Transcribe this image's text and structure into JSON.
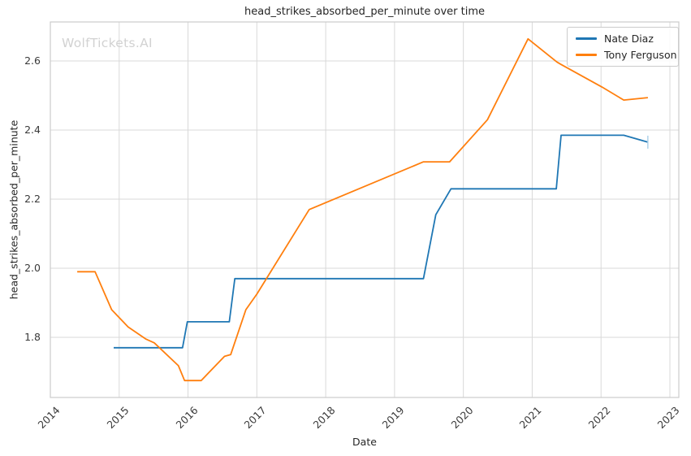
{
  "title": "head_strikes_absorbed_per_minute over time",
  "watermark": "WolfTickets.AI",
  "axes": {
    "xlabel": "Date",
    "ylabel": "head_strikes_absorbed_per_minute"
  },
  "colors": {
    "background": "#ffffff",
    "grid": "#d9d9d9",
    "spine": "#cbcbcb",
    "text": "#262626",
    "tick_text": "#3a3a3a",
    "watermark": "#d2d2d2",
    "nate_diaz": "#1f77b4",
    "tony_ferguson": "#ff7f0e",
    "end_cap": "#a9cfe8"
  },
  "chart_data": {
    "type": "line",
    "title": "head_strikes_absorbed_per_minute over time",
    "xlabel": "Date",
    "ylabel": "head_strikes_absorbed_per_minute",
    "xlim": [
      2014.0,
      2023.13
    ],
    "ylim": [
      1.626,
      2.713
    ],
    "grid": true,
    "legend_position": "upper right",
    "x_ticks": [
      2014,
      2015,
      2016,
      2017,
      2018,
      2019,
      2020,
      2021,
      2022,
      2023
    ],
    "x_tick_labels": [
      "2014",
      "2015",
      "2016",
      "2017",
      "2018",
      "2019",
      "2020",
      "2021",
      "2022",
      "2023"
    ],
    "y_ticks": [
      1.8,
      2.0,
      2.2,
      2.4,
      2.6
    ],
    "y_tick_labels": [
      "1.8",
      "2.0",
      "2.2",
      "2.4",
      "2.6"
    ],
    "series": [
      {
        "name": "Nate Diaz",
        "color": "#1f77b4",
        "end_marker": "tick",
        "end_marker_color": "#a9cfe8",
        "points": [
          [
            2014.92,
            1.77
          ],
          [
            2015.92,
            1.77
          ],
          [
            2015.99,
            1.845
          ],
          [
            2016.6,
            1.845
          ],
          [
            2016.68,
            1.97
          ],
          [
            2019.42,
            1.97
          ],
          [
            2019.6,
            2.155
          ],
          [
            2019.82,
            2.23
          ],
          [
            2021.35,
            2.23
          ],
          [
            2021.42,
            2.385
          ],
          [
            2022.33,
            2.385
          ],
          [
            2022.68,
            2.365
          ]
        ]
      },
      {
        "name": "Tony Ferguson",
        "color": "#ff7f0e",
        "points": [
          [
            2014.39,
            1.99
          ],
          [
            2014.65,
            1.99
          ],
          [
            2014.89,
            1.88
          ],
          [
            2015.13,
            1.83
          ],
          [
            2015.39,
            1.795
          ],
          [
            2015.51,
            1.784
          ],
          [
            2015.86,
            1.718
          ],
          [
            2015.95,
            1.675
          ],
          [
            2016.19,
            1.675
          ],
          [
            2016.53,
            1.745
          ],
          [
            2016.62,
            1.75
          ],
          [
            2016.84,
            1.88
          ],
          [
            2017.0,
            1.925
          ],
          [
            2017.76,
            2.17
          ],
          [
            2019.42,
            2.308
          ],
          [
            2019.8,
            2.308
          ],
          [
            2020.35,
            2.43
          ],
          [
            2020.94,
            2.664
          ],
          [
            2021.36,
            2.597
          ],
          [
            2021.42,
            2.59
          ],
          [
            2022.01,
            2.525
          ],
          [
            2022.33,
            2.487
          ],
          [
            2022.68,
            2.494
          ]
        ]
      }
    ]
  }
}
